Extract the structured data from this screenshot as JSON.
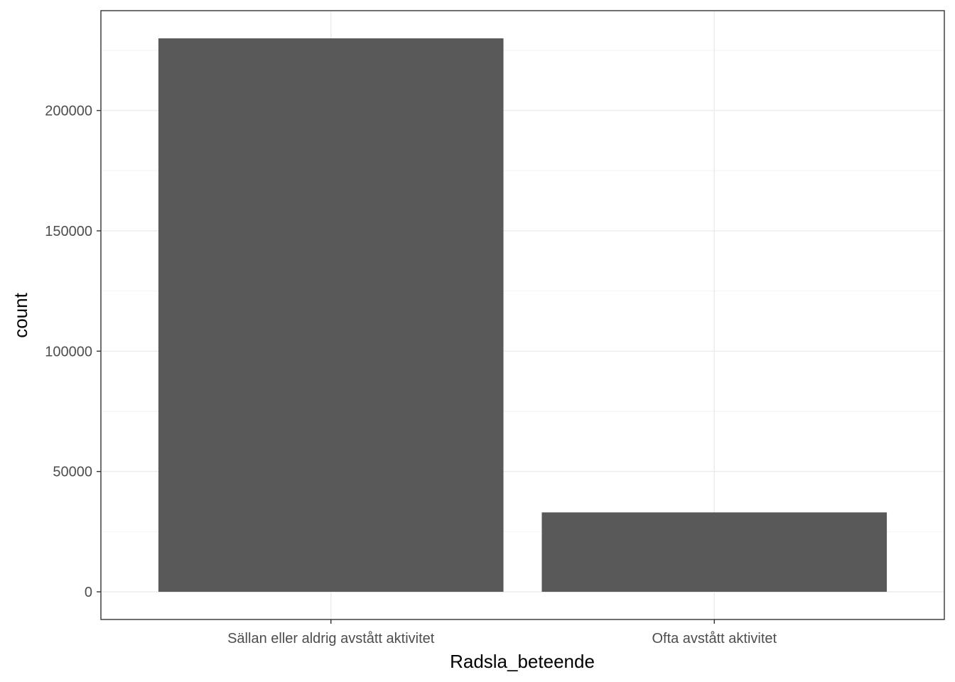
{
  "chart_data": {
    "type": "bar",
    "title": "",
    "xlabel": "Radsla_beteende",
    "ylabel": "count",
    "categories": [
      "Sällan eller aldrig avstått aktivitet",
      "Ofta avstått aktivitet"
    ],
    "values": [
      230000,
      33000
    ],
    "yticks": [
      0,
      50000,
      100000,
      150000,
      200000
    ],
    "ytick_labels": [
      "0",
      "50000",
      "100000",
      "150000",
      "200000"
    ],
    "ylim": [
      -11500,
      241500
    ],
    "grid": true,
    "theme": "bw",
    "colors": {
      "bar": "#595959",
      "panel_border": "#333333",
      "grid_major": "#ebebeb",
      "grid_minor": "#f2f2f2",
      "tick_text": "#4d4d4d"
    }
  }
}
